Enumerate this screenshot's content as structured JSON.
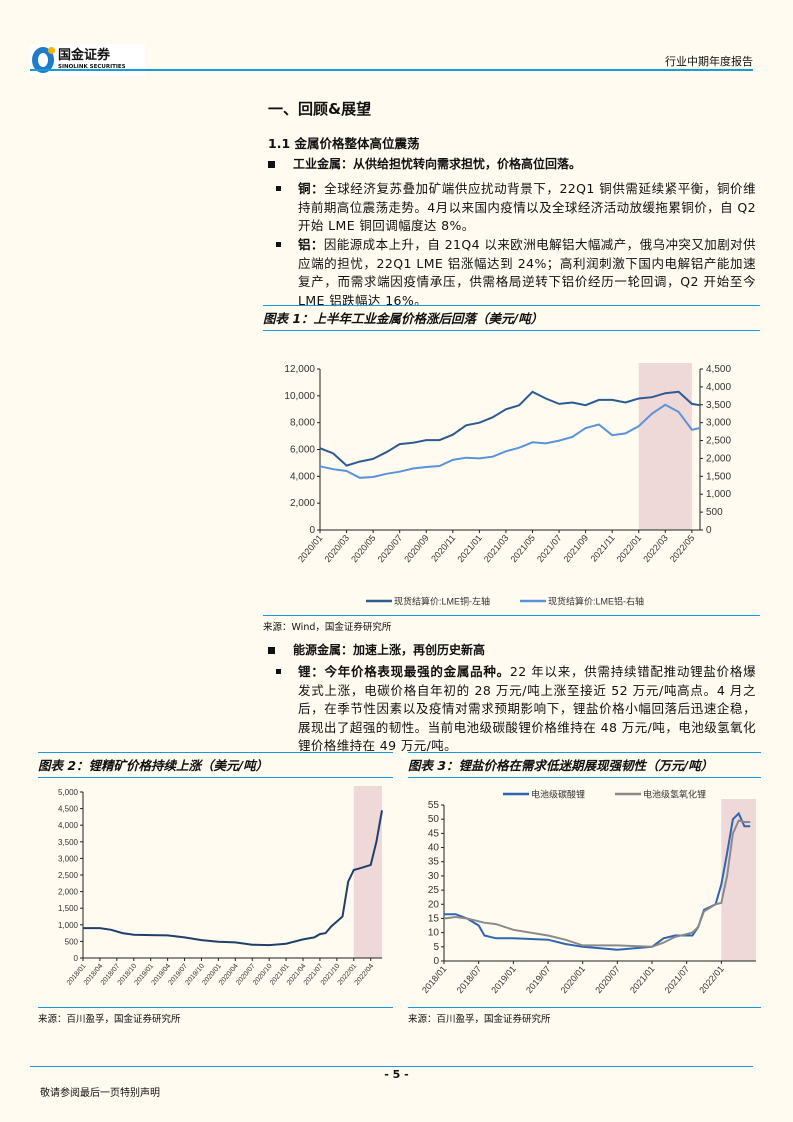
{
  "header": {
    "logo_cn": "国金证券",
    "logo_en": "SINOLINK SECURITIES",
    "report_type": "行业中期年度报告"
  },
  "section_title": "一、回顾&展望",
  "subsection_title": "1.1 金属价格整体高位震荡",
  "industrial": {
    "heading": "工业金属：从供给担忧转向需求担忧，价格高位回落。",
    "copper": {
      "label": "铜：",
      "text": "全球经济复苏叠加矿端供应扰动背景下，22Q1 铜供需延续紧平衡，铜价维持前期高位震荡走势。4月以来国内疫情以及全球经济活动放缓拖累铜价，自 Q2 开始 LME 铜回调幅度达 8%。"
    },
    "aluminum": {
      "label": "铝：",
      "text": "因能源成本上升，自 21Q4 以来欧洲电解铝大幅减产，俄乌冲突又加剧对供应端的担忧，22Q1 LME 铝涨幅达到 24%；高利润刺激下国内电解铝产能加速复产，而需求端因疫情承压，供需格局逆转下铝价经历一轮回调，Q2 开始至今 LME 铝跌幅达 16%。"
    }
  },
  "energy": {
    "heading": "能源金属：加速上涨，再创历史新高",
    "lithium": {
      "label": "锂：今年价格表现最强的金属品种。",
      "text": "22 年以来，供需持续错配推动锂盐价格爆发式上涨，电碳价格自年初的 28 万元/吨上涨至接近 52 万元/吨高点。4 月之后，在季节性因素以及疫情对需求预期影响下，锂盐价格小幅回落后迅速企稳，展现出了超强的韧性。当前电池级碳酸锂价格维持在 48 万元/吨，电池级氢氧化锂价格维持在 49 万元/吨。"
    }
  },
  "figures": [
    {
      "title": "图表 1：上半年工业金属价格涨后回落（美元/吨）",
      "source": "来源：Wind，国金证券研究所"
    },
    {
      "title": "图表 2：锂精矿价格持续上涨（美元/吨）",
      "source": "来源：百川盈孚，国金证券研究所"
    },
    {
      "title": "图表 3：锂盐价格在需求低迷期展现强韧性（万元/吨）",
      "source": "来源：百川盈孚，国金证券研究所"
    }
  ],
  "chart_data": [
    {
      "type": "line",
      "grid": false,
      "legend": "bottom",
      "shade": [
        "2022/01",
        "2022/05"
      ],
      "x_ticks": [
        "2020/01",
        "2020/03",
        "2020/05",
        "2020/07",
        "2020/09",
        "2020/11",
        "2021/01",
        "2021/03",
        "2021/05",
        "2021/07",
        "2021/09",
        "2021/11",
        "2022/01",
        "2022/03",
        "2022/05"
      ],
      "y_left": {
        "ticks": [
          "0",
          "2,000",
          "4,000",
          "6,000",
          "8,000",
          "10,000",
          "12,000"
        ],
        "ylim": [
          0,
          12000
        ]
      },
      "y_right": {
        "ticks": [
          "0",
          "500",
          "1,000",
          "1,500",
          "2,000",
          "2,500",
          "3,000",
          "3,500",
          "4,000",
          "4,500"
        ],
        "ylim": [
          0,
          4500
        ]
      },
      "x": [
        "2020/01",
        "2020/02",
        "2020/03",
        "2020/04",
        "2020/05",
        "2020/06",
        "2020/07",
        "2020/08",
        "2020/09",
        "2020/10",
        "2020/11",
        "2020/12",
        "2021/01",
        "2021/02",
        "2021/03",
        "2021/04",
        "2021/05",
        "2021/06",
        "2021/07",
        "2021/08",
        "2021/09",
        "2021/10",
        "2021/11",
        "2021/12",
        "2022/01",
        "2022/02",
        "2022/03",
        "2022/04",
        "2022/05",
        "2022/05/20"
      ],
      "series": [
        {
          "name": "现货结算价:LME铜-左轴",
          "axis": "left",
          "color": "#2e5b8f",
          "values": [
            6100,
            5700,
            4800,
            5100,
            5300,
            5800,
            6400,
            6500,
            6700,
            6700,
            7100,
            7800,
            8000,
            8400,
            9000,
            9300,
            10300,
            9800,
            9400,
            9500,
            9300,
            9700,
            9700,
            9500,
            9800,
            9900,
            10200,
            10300,
            9400,
            9300
          ]
        },
        {
          "name": "现货结算价:LME铝-右轴",
          "axis": "right",
          "color": "#5b93d8",
          "values": [
            1780,
            1700,
            1650,
            1460,
            1480,
            1570,
            1630,
            1720,
            1760,
            1790,
            1960,
            2020,
            2000,
            2050,
            2200,
            2300,
            2450,
            2420,
            2500,
            2600,
            2850,
            2950,
            2650,
            2700,
            2900,
            3250,
            3500,
            3300,
            2800,
            2850
          ]
        }
      ]
    },
    {
      "type": "line",
      "grid": false,
      "shade": [
        "2022/01",
        "2022/06"
      ],
      "x_ticks": [
        "2018/01",
        "2018/04",
        "2018/07",
        "2018/10",
        "2019/01",
        "2019/04",
        "2019/07",
        "2019/10",
        "2020/01",
        "2020/04",
        "2020/07",
        "2020/10",
        "2021/01",
        "2021/04",
        "2021/07",
        "2021/10",
        "2022/01",
        "2022/04"
      ],
      "y_left": {
        "ticks": [
          "0",
          "500",
          "1,000",
          "1,500",
          "2,000",
          "2,500",
          "3,000",
          "3,500",
          "4,000",
          "4,500",
          "5,000"
        ],
        "ylim": [
          0,
          5000
        ]
      },
      "x": [
        "2018/01",
        "2018/04",
        "2018/06",
        "2018/08",
        "2018/10",
        "2019/01",
        "2019/04",
        "2019/07",
        "2019/10",
        "2020/01",
        "2020/04",
        "2020/07",
        "2020/10",
        "2021/01",
        "2021/04",
        "2021/06",
        "2021/07",
        "2021/08",
        "2021/09",
        "2021/10",
        "2021/11",
        "2021/12",
        "2022/01",
        "2022/02",
        "2022/03",
        "2022/04",
        "2022/05",
        "2022/06"
      ],
      "series": [
        {
          "axis": "left",
          "color": "#213f6b",
          "values": [
            900,
            900,
            850,
            750,
            700,
            690,
            680,
            620,
            540,
            490,
            470,
            400,
            390,
            430,
            560,
            620,
            720,
            750,
            950,
            1100,
            1250,
            2300,
            2650,
            2700,
            2750,
            2800,
            3500,
            4450
          ]
        }
      ]
    },
    {
      "type": "line",
      "grid": false,
      "legend": "top",
      "shade": [
        "2022/01",
        "2022/07"
      ],
      "x_ticks": [
        "2018/01",
        "2018/07",
        "2019/01",
        "2019/07",
        "2020/01",
        "2020/07",
        "2021/01",
        "2021/07",
        "2022/01"
      ],
      "y_left": {
        "ticks": [
          "0",
          "5",
          "10",
          "15",
          "20",
          "25",
          "30",
          "35",
          "40",
          "45",
          "50",
          "55"
        ],
        "ylim": [
          0,
          55
        ]
      },
      "x": [
        "2018/01",
        "2018/03",
        "2018/05",
        "2018/07",
        "2018/08",
        "2018/10",
        "2019/01",
        "2019/07",
        "2019/10",
        "2020/01",
        "2020/07",
        "2021/01",
        "2021/03",
        "2021/05",
        "2021/07",
        "2021/08",
        "2021/09",
        "2021/10",
        "2021/12",
        "2022/01",
        "2022/02",
        "2022/03",
        "2022/04",
        "2022/05",
        "2022/06"
      ],
      "series": [
        {
          "name": "电池级碳酸锂",
          "axis": "left",
          "color": "#2f64b0",
          "values": [
            16.5,
            16.5,
            15,
            12.5,
            9,
            8,
            8,
            7.5,
            6,
            5,
            4,
            5,
            8,
            9,
            9,
            9,
            12,
            18,
            20,
            27,
            38,
            50,
            52,
            47.5,
            47.5
          ]
        },
        {
          "name": "电池级氢氧化锂",
          "axis": "left",
          "color": "#8a8a8a",
          "values": [
            15,
            15.5,
            15,
            14,
            13.5,
            13,
            11,
            9,
            7.5,
            5.5,
            5.5,
            5,
            6.5,
            8.5,
            9.5,
            10,
            12,
            17.5,
            20,
            20.5,
            30,
            45,
            49.5,
            49,
            49
          ]
        }
      ]
    }
  ],
  "footer": {
    "page": "- 5 -",
    "disclaimer": "敬请参阅最后一页特别声明"
  }
}
